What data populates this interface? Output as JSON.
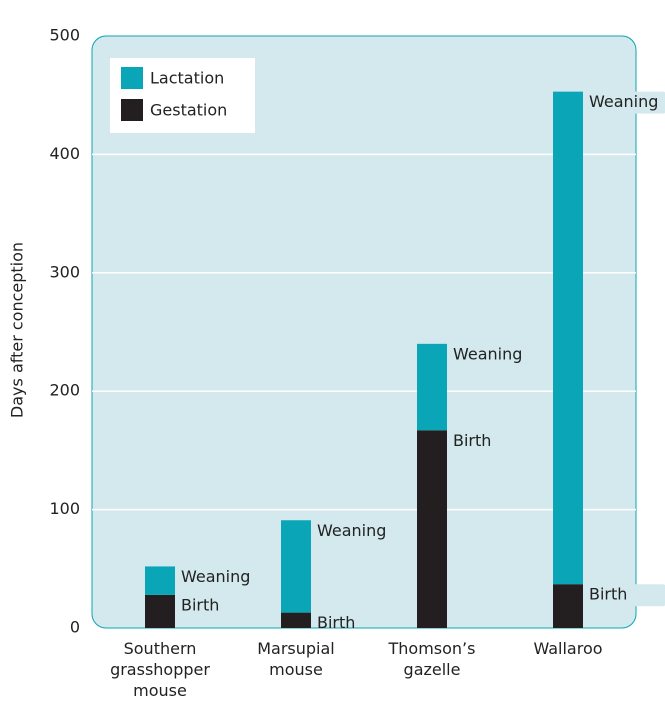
{
  "chart_data": {
    "type": "stacked_bar",
    "y_label": "Days after conception",
    "categories": [
      "Southern grasshopper mouse",
      "Marsupial mouse",
      "Thomson’s gazelle",
      "Wallaroo"
    ],
    "series": [
      {
        "name": "Gestation",
        "color": "#231f20",
        "values": [
          28,
          13,
          167,
          37
        ],
        "point_labels": [
          "Birth",
          "Birth",
          "Birth",
          "Birth"
        ]
      },
      {
        "name": "Lactation",
        "color": "#0aa5b6",
        "values": [
          24,
          78,
          73,
          416
        ],
        "point_labels": [
          "Weaning",
          "Weaning",
          "Weaning",
          "Weaning"
        ]
      }
    ],
    "ylim": [
      0,
      500
    ],
    "yticks": [
      0,
      100,
      200,
      300,
      400,
      500
    ],
    "grid": true,
    "legend": "top-left"
  }
}
